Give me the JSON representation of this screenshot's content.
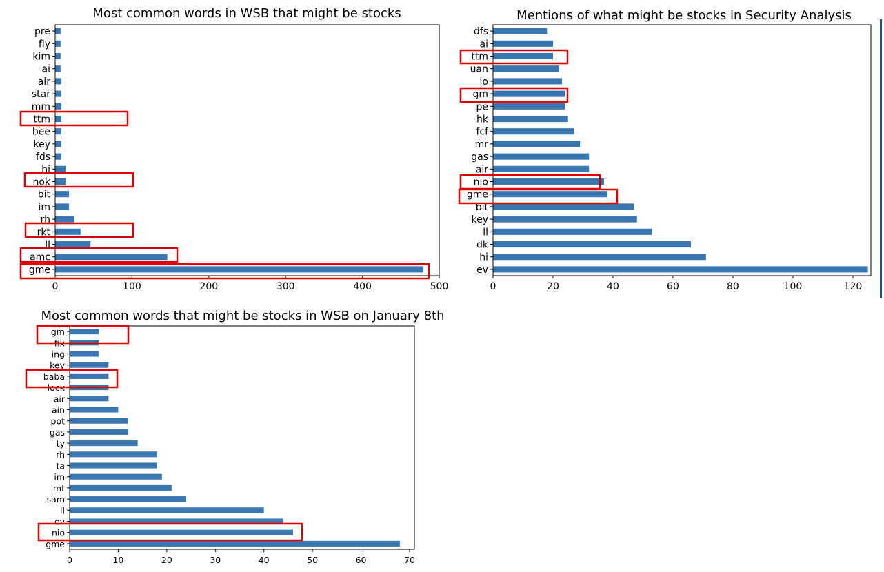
{
  "colors": {
    "bar": "#3a77b0",
    "highlight": "#e00000",
    "accent_line": "#1d4e74"
  },
  "chart_data": [
    {
      "type": "bar",
      "orientation": "horizontal",
      "title": "Most common words in WSB that might be stocks",
      "categories": [
        "gme",
        "amc",
        "ll",
        "rkt",
        "rh",
        "im",
        "bit",
        "nok",
        "hi",
        "fds",
        "key",
        "bee",
        "ttm",
        "mm",
        "star",
        "air",
        "ai",
        "kim",
        "fly",
        "pre"
      ],
      "values": [
        479,
        146,
        46,
        33,
        25,
        18,
        18,
        14,
        14,
        8,
        8,
        8,
        8,
        8,
        8,
        8,
        7,
        7,
        7,
        7
      ],
      "xlim": [
        0,
        500
      ],
      "xticks": [
        0,
        100,
        200,
        300,
        400,
        500
      ],
      "highlighted": [
        "ttm",
        "nok",
        "rkt",
        "amc",
        "gme"
      ],
      "xlabel": "",
      "ylabel": ""
    },
    {
      "type": "bar",
      "orientation": "horizontal",
      "title": "Mentions of what might be stocks in Security Analysis",
      "categories": [
        "ev",
        "hi",
        "dk",
        "ll",
        "key",
        "bit",
        "gme",
        "nio",
        "air",
        "gas",
        "mr",
        "fcf",
        "hk",
        "pe",
        "gm",
        "io",
        "uan",
        "ttm",
        "ai",
        "dfs"
      ],
      "values": [
        125,
        71,
        66,
        53,
        48,
        47,
        38,
        37,
        32,
        32,
        29,
        27,
        25,
        24,
        24,
        23,
        22,
        20,
        20,
        18
      ],
      "xlim": [
        0,
        126
      ],
      "xticks": [
        0,
        20,
        40,
        60,
        80,
        100,
        120
      ],
      "highlighted": [
        "ttm",
        "gm",
        "nio",
        "gme"
      ],
      "xlabel": "",
      "ylabel": ""
    },
    {
      "type": "bar",
      "orientation": "horizontal",
      "title": "Most common words that might be stocks in WSB on January 8th",
      "categories": [
        "gme",
        "nio",
        "ev",
        "ll",
        "sam",
        "mt",
        "im",
        "ta",
        "rh",
        "ty",
        "gas",
        "pot",
        "ain",
        "air",
        "lock",
        "baba",
        "key",
        "ing",
        "fix",
        "gm"
      ],
      "values": [
        68,
        46,
        44,
        40,
        24,
        21,
        19,
        18,
        18,
        14,
        12,
        12,
        10,
        8,
        8,
        8,
        8,
        6,
        6,
        6
      ],
      "xlim": [
        0,
        71
      ],
      "xticks": [
        0,
        10,
        20,
        30,
        40,
        50,
        60,
        70
      ],
      "highlighted": [
        "gm",
        "baba",
        "nio"
      ],
      "xlabel": "",
      "ylabel": ""
    }
  ]
}
